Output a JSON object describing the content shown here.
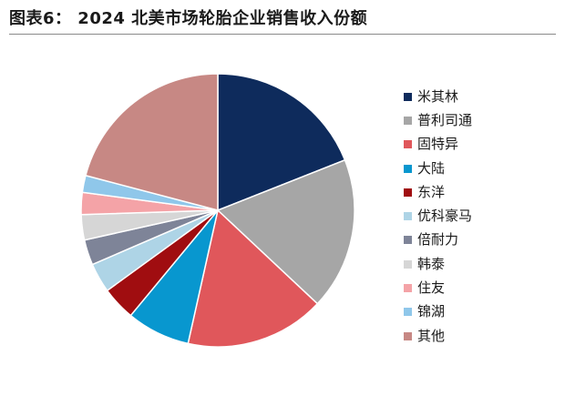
{
  "title": "图表6：  2024 北美市场轮胎企业销售收入份额",
  "chart_data": {
    "type": "pie",
    "title": "图表6：  2024 北美市场轮胎企业销售收入份额",
    "legend_position": "right",
    "categories": [
      "米其林",
      "普利司通",
      "固特异",
      "大陆",
      "东洋",
      "优科豪马",
      "倍耐力",
      "韩泰",
      "住友",
      "锦湖",
      "其他"
    ],
    "values": [
      19.0,
      18.0,
      16.5,
      7.5,
      4.0,
      3.5,
      3.0,
      3.0,
      2.6,
      2.0,
      20.9
    ],
    "colors": [
      "#0e2b5c",
      "#a6a6a6",
      "#e0575b",
      "#0897cf",
      "#a00d10",
      "#aed4e6",
      "#7e8498",
      "#d6d6d6",
      "#f4a3a7",
      "#8fc7ea",
      "#c78884"
    ]
  }
}
